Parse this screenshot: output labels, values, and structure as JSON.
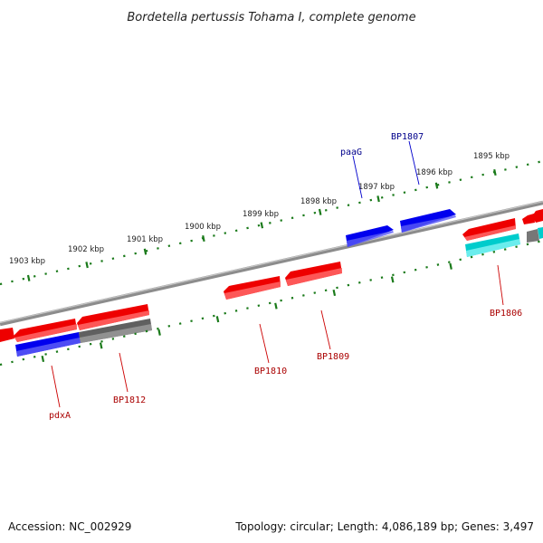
{
  "title": "Bordetella pertussis Tohama I, complete genome",
  "footer": {
    "accession": "Accession: NC_002929",
    "summary": "Topology: circular; Length: 4,086,189 bp; Genes: 3,497"
  },
  "scale": {
    "labels": [
      "1903 kbp",
      "1902 kbp",
      "1901 kbp",
      "1900 kbp",
      "1899 kbp",
      "1898 kbp",
      "1897 kbp",
      "1896 kbp",
      "1895 kbp"
    ]
  },
  "genes": [
    {
      "name": "paaG",
      "strand": "forward",
      "color": "#0000ee",
      "label_color": "#00008b"
    },
    {
      "name": "BP1807",
      "strand": "forward",
      "color": "#0000ee",
      "label_color": "#00008b"
    },
    {
      "name": "BP1806",
      "strand": "reverse",
      "color": "#ee0000",
      "label_color": "#aa0000"
    },
    {
      "name": "BP1809",
      "strand": "reverse",
      "color": "#ee0000",
      "label_color": "#aa0000"
    },
    {
      "name": "BP1810",
      "strand": "reverse",
      "color": "#ee0000",
      "label_color": "#aa0000"
    },
    {
      "name": "BP1812",
      "strand": "reverse",
      "color": "#777777",
      "label_color": "#aa0000"
    },
    {
      "name": "pdxA",
      "strand": "reverse",
      "color": "#0000ee",
      "label_color": "#aa0000"
    }
  ],
  "colors": {
    "backbone": "#7a7a7a",
    "ticks": "#1a7a1a",
    "forward": "#0000ee",
    "reverse": "#ee0000",
    "other": "#00cccc",
    "pseudo": "#777777"
  }
}
